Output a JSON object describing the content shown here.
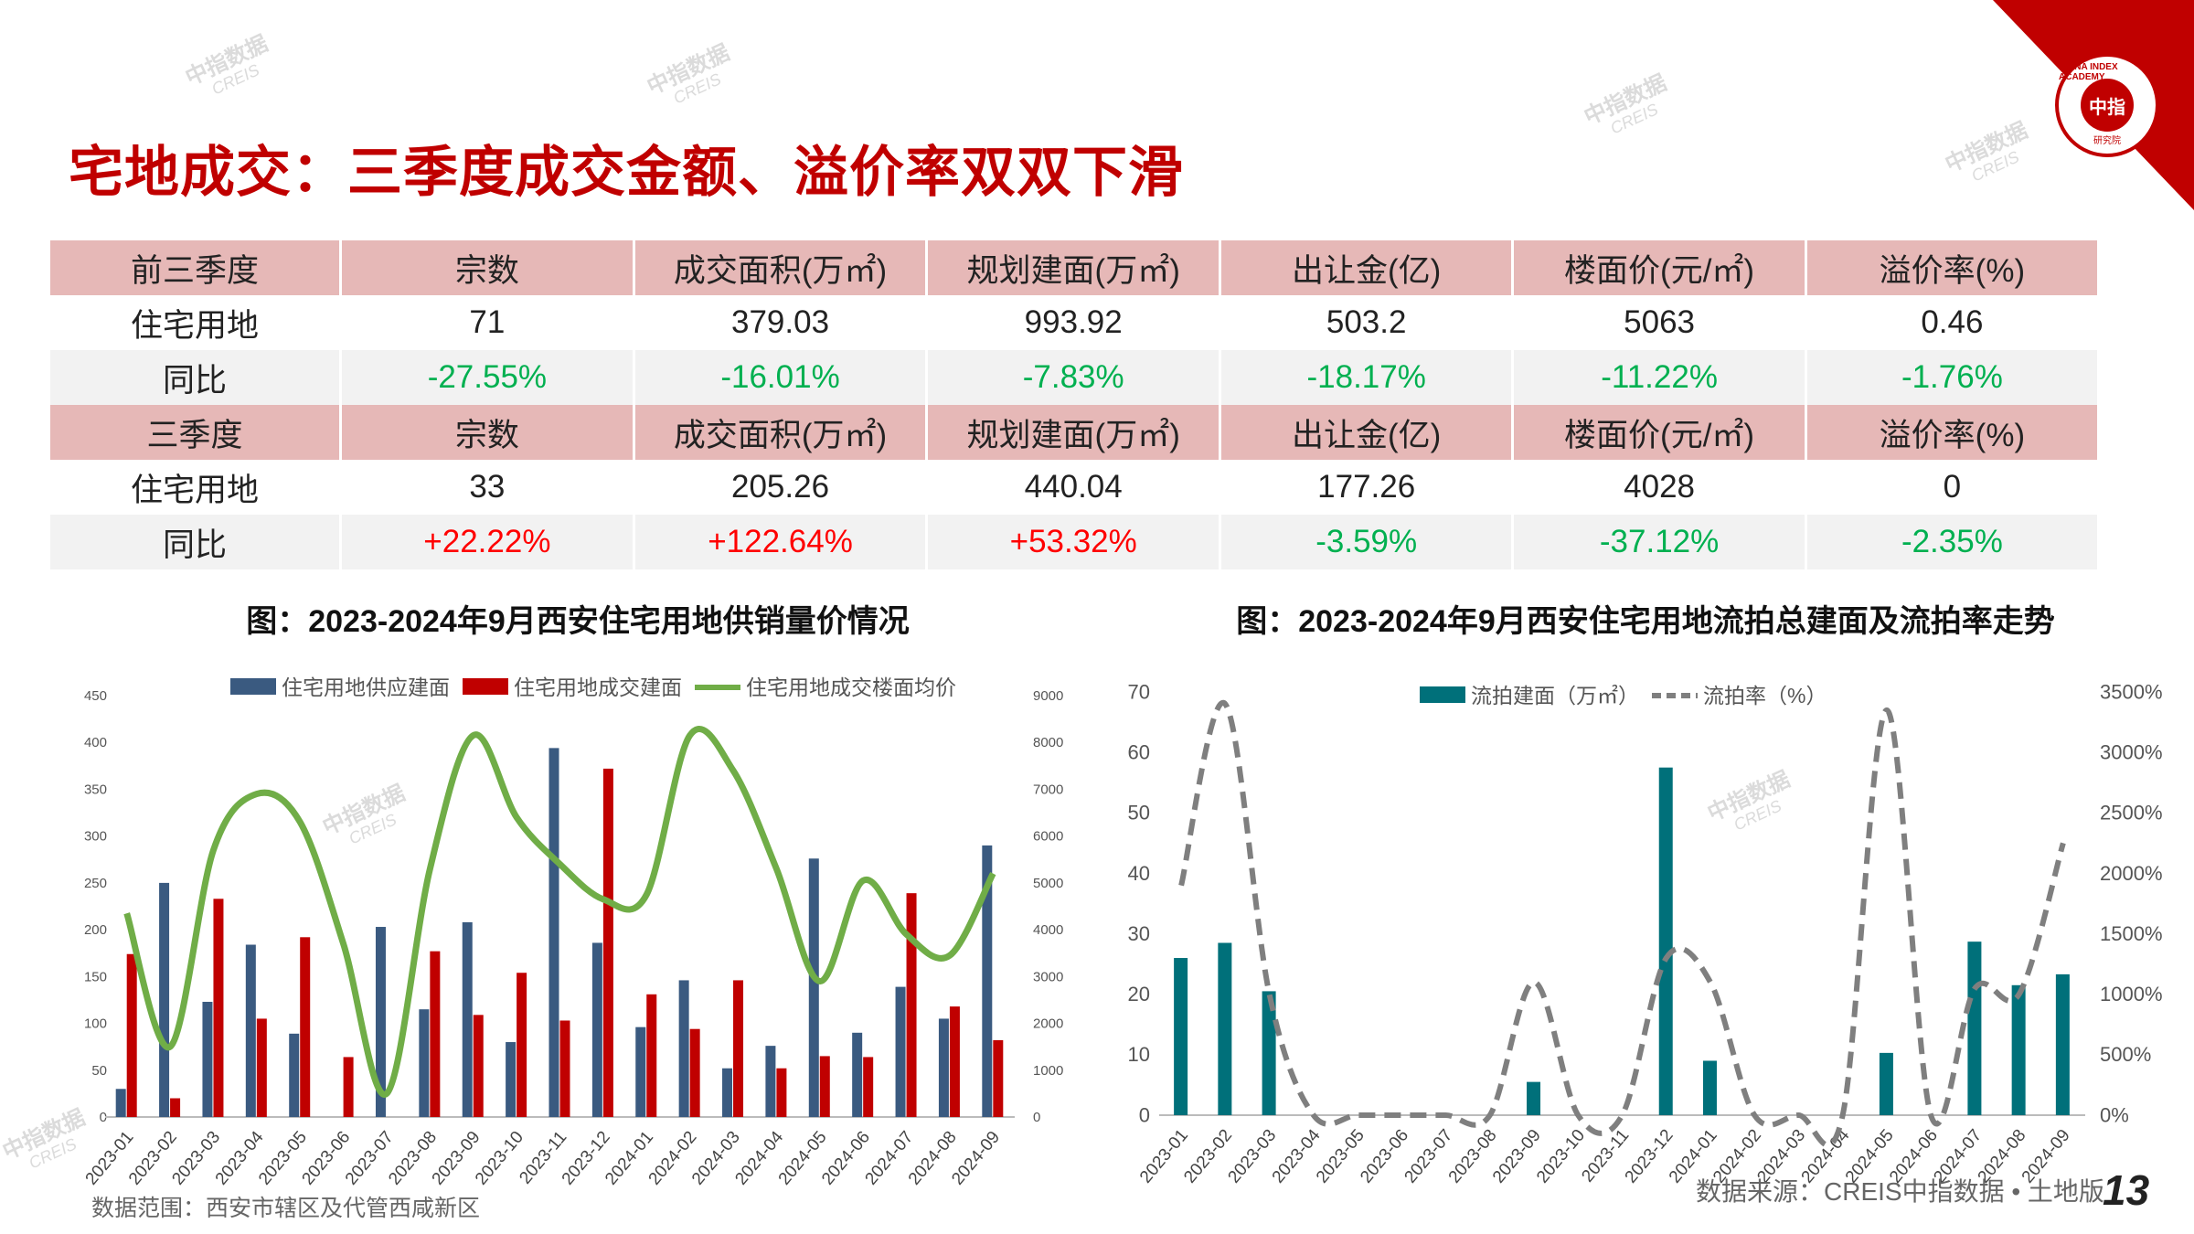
{
  "title": "宅地成交：三季度成交金额、溢价率双双下滑",
  "logo": {
    "center": "中指",
    "ring": "CHINA INDEX ACADEMY",
    "sub": "研究院"
  },
  "watermark": {
    "cn": "中指数据",
    "en": "CREIS"
  },
  "table": {
    "headers": [
      "宗数",
      "成交面积(万㎡)",
      "规划建面(万㎡)",
      "出让金(亿)",
      "楼面价(元/㎡)",
      "溢价率(%)"
    ],
    "sections": [
      {
        "label": "前三季度",
        "row_label": "住宅用地",
        "values": [
          "71",
          "379.03",
          "993.92",
          "503.2",
          "5063",
          "0.46"
        ],
        "yoy_label": "同比",
        "yoy": [
          "-27.55%",
          "-16.01%",
          "-7.83%",
          "-18.17%",
          "-11.22%",
          "-1.76%"
        ]
      },
      {
        "label": "三季度",
        "row_label": "住宅用地",
        "values": [
          "33",
          "205.26",
          "440.04",
          "177.26",
          "4028",
          "0"
        ],
        "yoy_label": "同比",
        "yoy": [
          "+22.22%",
          "+122.64%",
          "+53.32%",
          "-3.59%",
          "-37.12%",
          "-2.35%"
        ]
      }
    ]
  },
  "footer": {
    "scope": "数据范围：西安市辖区及代管西咸新区",
    "source": "数据来源：CREIS中指数据 • 土地版",
    "page": "13"
  },
  "chart_data": [
    {
      "type": "bar+line",
      "title": "图：2023-2024年9月西安住宅用地供销量价情况",
      "categories": [
        "2023-01",
        "2023-02",
        "2023-03",
        "2023-04",
        "2023-05",
        "2023-06",
        "2023-07",
        "2023-08",
        "2023-09",
        "2023-10",
        "2023-11",
        "2023-12",
        "2024-01",
        "2024-02",
        "2024-03",
        "2024-04",
        "2024-05",
        "2024-06",
        "2024-07",
        "2024-08",
        "2024-09"
      ],
      "ylim": [
        0,
        450
      ],
      "yticks": [
        0,
        50,
        100,
        150,
        200,
        250,
        300,
        350,
        400,
        450
      ],
      "y2lim": [
        0,
        9000
      ],
      "y2ticks": [
        0,
        1000,
        2000,
        3000,
        4000,
        5000,
        6000,
        7000,
        8000,
        9000
      ],
      "legend_position": "top",
      "series": [
        {
          "name": "住宅用地供应建面",
          "type": "bar",
          "axis": "left",
          "color": "#3a5a80",
          "values": [
            30,
            250,
            123,
            184,
            89,
            0,
            203,
            115,
            208,
            80,
            394,
            186,
            96,
            146,
            52,
            76,
            276,
            90,
            139,
            105,
            290
          ]
        },
        {
          "name": "住宅用地成交建面",
          "type": "bar",
          "axis": "left",
          "color": "#c00000",
          "values": [
            174,
            20,
            233,
            105,
            192,
            64,
            0,
            177,
            109,
            154,
            103,
            372,
            131,
            94,
            146,
            52,
            65,
            64,
            239,
            118,
            82
          ]
        },
        {
          "name": "住宅用地成交楼面均价",
          "type": "line",
          "axis": "right",
          "color": "#70ad47",
          "values": [
            4350,
            1500,
            5700,
            6900,
            6300,
            3700,
            500,
            5300,
            8150,
            6400,
            5400,
            4650,
            4750,
            8150,
            7400,
            5300,
            2900,
            5050,
            3900,
            3450,
            5200
          ]
        }
      ]
    },
    {
      "type": "bar+line",
      "title": "图：2023-2024年9月西安住宅用地流拍总建面及流拍率走势",
      "categories": [
        "2023-01",
        "2023-02",
        "2023-03",
        "2023-04",
        "2023-05",
        "2023-06",
        "2023-07",
        "2023-08",
        "2023-09",
        "2023-10",
        "2023-11",
        "2023-12",
        "2024-01",
        "2024-02",
        "2024-03",
        "2024-04",
        "2024-05",
        "2024-06",
        "2024-07",
        "2024-08",
        "2024-09"
      ],
      "ylim": [
        0,
        70
      ],
      "yticks": [
        0,
        10,
        20,
        30,
        40,
        50,
        60,
        70
      ],
      "y2lim": [
        0,
        3500
      ],
      "y2ticks": [
        "0%",
        "500%",
        "1000%",
        "1500%",
        "2000%",
        "2500%",
        "3000%",
        "3500%"
      ],
      "legend_position": "top",
      "series": [
        {
          "name": "流拍建面（万㎡）",
          "type": "bar",
          "axis": "left",
          "color": "#00707a",
          "values": [
            26,
            28.5,
            20.5,
            0,
            0,
            0,
            0,
            0,
            5.5,
            0,
            0,
            57.5,
            9,
            0,
            0,
            0,
            10.3,
            0,
            28.7,
            21.5,
            23.3
          ]
        },
        {
          "name": "流拍率（%）",
          "type": "line",
          "axis": "right",
          "color": "#7f7f7f",
          "dashed": true,
          "values": [
            1900,
            3400,
            1000,
            0,
            0,
            0,
            0,
            0,
            1100,
            0,
            0,
            1300,
            1100,
            0,
            0,
            0,
            3350,
            0,
            1050,
            1000,
            2250
          ]
        }
      ]
    }
  ]
}
